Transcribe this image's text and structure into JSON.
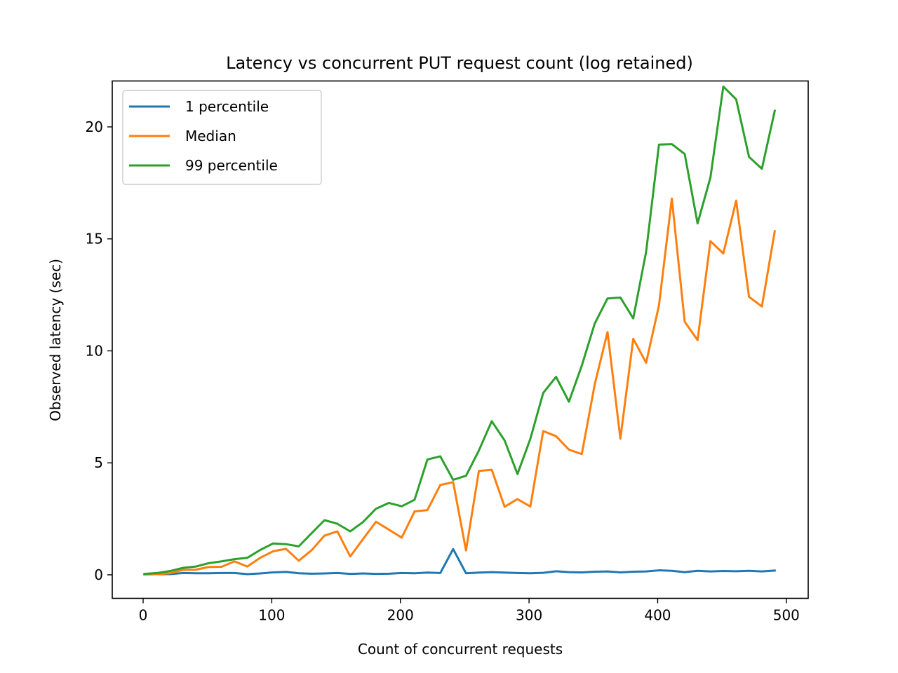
{
  "chart_data": {
    "type": "line",
    "title": "Latency vs concurrent PUT request count (log retained)",
    "xlabel": "Count of concurrent requests",
    "ylabel": "Observed latency (sec)",
    "xlim": [
      -24,
      517
    ],
    "ylim": [
      -1.05,
      22.05
    ],
    "xticks": [
      0,
      100,
      200,
      300,
      400,
      500
    ],
    "yticks": [
      0,
      5,
      10,
      15,
      20
    ],
    "grid": false,
    "legend_position": "top-left",
    "x": [
      1,
      11,
      21,
      31,
      41,
      51,
      61,
      71,
      81,
      91,
      101,
      111,
      121,
      131,
      141,
      151,
      161,
      171,
      181,
      191,
      201,
      211,
      221,
      231,
      241,
      251,
      261,
      271,
      281,
      291,
      301,
      311,
      321,
      331,
      341,
      351,
      361,
      371,
      381,
      391,
      401,
      411,
      421,
      431,
      441,
      451,
      461,
      471,
      481,
      491
    ],
    "series": [
      {
        "name": "1 percentile",
        "color": "#1f77b4",
        "values": [
          0.02,
          0.03,
          0.03,
          0.08,
          0.07,
          0.07,
          0.08,
          0.08,
          0.03,
          0.06,
          0.11,
          0.13,
          0.07,
          0.05,
          0.06,
          0.08,
          0.04,
          0.06,
          0.04,
          0.05,
          0.08,
          0.07,
          0.1,
          0.08,
          1.15,
          0.07,
          0.1,
          0.12,
          0.1,
          0.08,
          0.07,
          0.09,
          0.16,
          0.12,
          0.11,
          0.14,
          0.15,
          0.11,
          0.14,
          0.15,
          0.2,
          0.18,
          0.12,
          0.18,
          0.15,
          0.17,
          0.16,
          0.18,
          0.15,
          0.19
        ]
      },
      {
        "name": "Median",
        "color": "#ff7f0e",
        "values": [
          0.02,
          0.03,
          0.07,
          0.22,
          0.23,
          0.35,
          0.36,
          0.6,
          0.37,
          0.76,
          1.05,
          1.16,
          0.63,
          1.1,
          1.75,
          1.94,
          0.82,
          1.6,
          2.37,
          2.02,
          1.66,
          2.83,
          2.89,
          4.01,
          4.14,
          1.09,
          4.64,
          4.69,
          3.04,
          3.38,
          3.05,
          6.42,
          6.19,
          5.59,
          5.39,
          8.49,
          10.84,
          6.08,
          10.54,
          9.47,
          12.03,
          16.8,
          11.3,
          10.48,
          14.9,
          14.35,
          16.71,
          12.41,
          11.98,
          15.34
        ]
      },
      {
        "name": "99 percentile",
        "color": "#2ca02c",
        "values": [
          0.04,
          0.08,
          0.17,
          0.31,
          0.37,
          0.52,
          0.6,
          0.7,
          0.76,
          1.11,
          1.4,
          1.37,
          1.27,
          1.86,
          2.44,
          2.28,
          1.94,
          2.36,
          2.95,
          3.21,
          3.06,
          3.35,
          5.15,
          5.29,
          4.24,
          4.42,
          5.55,
          6.86,
          6.0,
          4.5,
          6.07,
          8.12,
          8.84,
          7.73,
          9.34,
          11.21,
          12.34,
          12.38,
          11.45,
          14.42,
          19.21,
          19.23,
          18.79,
          15.69,
          17.74,
          21.8,
          21.23,
          18.66,
          18.13,
          20.72
        ]
      }
    ]
  }
}
